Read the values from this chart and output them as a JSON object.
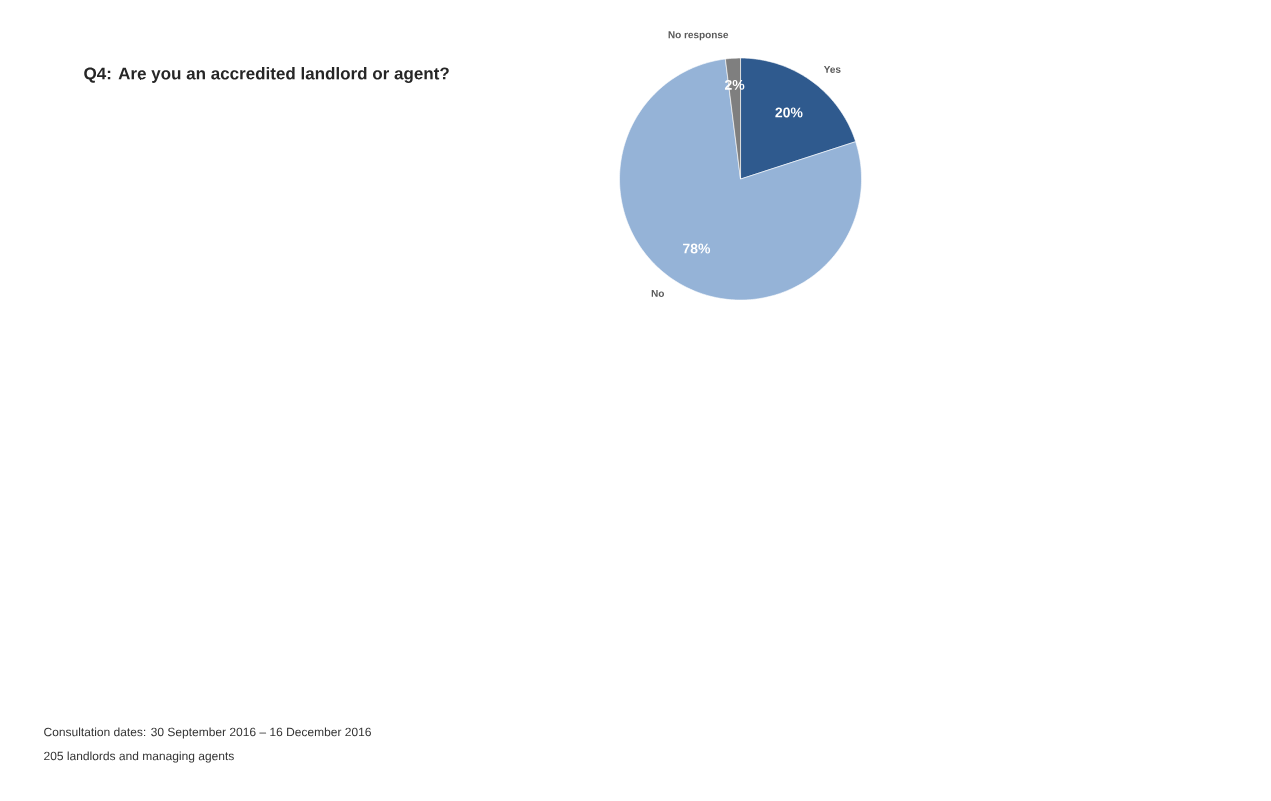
{
  "chart_data": {
    "type": "pie",
    "title": "Q4: Are you an accredited landlord or agent?",
    "categories": [
      "Yes",
      "No",
      "No response"
    ],
    "values": [
      20,
      78,
      2
    ],
    "colors": [
      "#2f5a8e",
      "#95b3d7",
      "#7f7f7f"
    ],
    "value_labels": [
      "20%",
      "78%",
      "2%"
    ],
    "annotations": [
      "Consultation dates: 30 September 2016 – 16 December 2016",
      "205 landlords and managing agents"
    ]
  }
}
